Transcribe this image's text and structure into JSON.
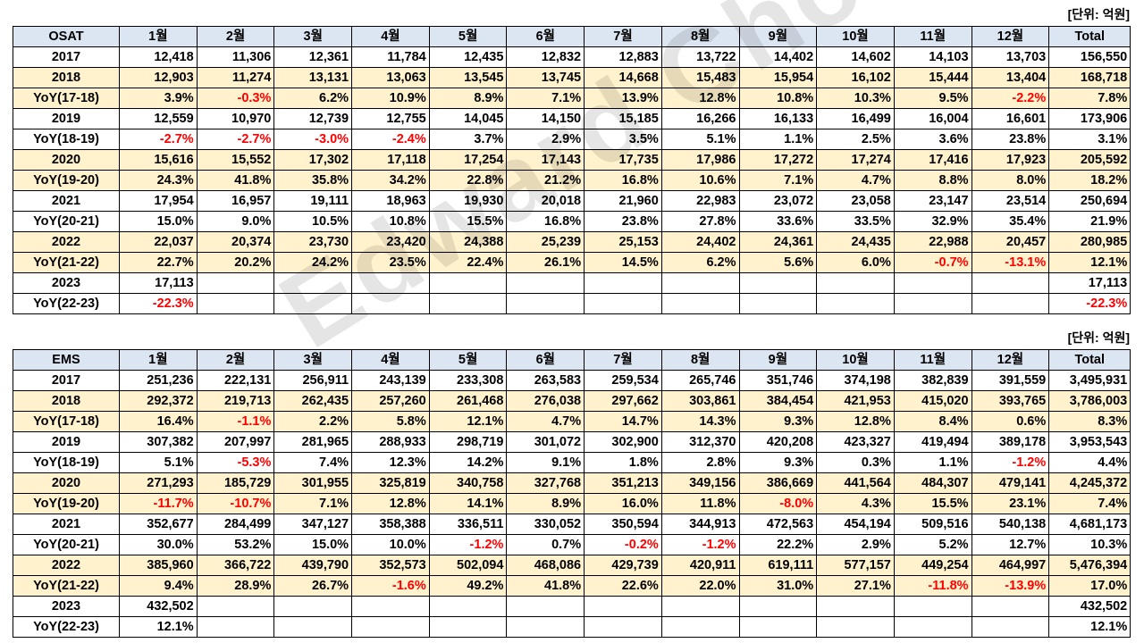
{
  "unit_label": "[단위: 억원]",
  "watermark": "Edward Choi",
  "months": [
    "1월",
    "2월",
    "3월",
    "4월",
    "5월",
    "6월",
    "7월",
    "8월",
    "9월",
    "10월",
    "11월",
    "12월"
  ],
  "total_label": "Total",
  "osat": {
    "title": "OSAT",
    "rows": [
      {
        "label": "2017",
        "style": "white",
        "cells": [
          "12,418",
          "11,306",
          "12,361",
          "11,784",
          "12,435",
          "12,832",
          "12,883",
          "13,722",
          "14,402",
          "14,602",
          "14,103",
          "13,703",
          "156,550"
        ]
      },
      {
        "label": "2018",
        "style": "yellow",
        "cells": [
          "12,903",
          "11,274",
          "13,131",
          "13,063",
          "13,545",
          "13,745",
          "14,668",
          "15,483",
          "15,954",
          "16,102",
          "15,444",
          "13,404",
          "168,718"
        ]
      },
      {
        "label": "YoY(17-18)",
        "style": "yellow",
        "cells": [
          "3.9%",
          "-0.3%",
          "6.2%",
          "10.9%",
          "8.9%",
          "7.1%",
          "13.9%",
          "12.8%",
          "10.8%",
          "10.3%",
          "9.5%",
          "-2.2%",
          "7.8%"
        ]
      },
      {
        "label": "2019",
        "style": "white",
        "cells": [
          "12,559",
          "10,970",
          "12,739",
          "12,755",
          "14,045",
          "14,150",
          "15,185",
          "16,266",
          "16,133",
          "16,499",
          "16,004",
          "16,601",
          "173,906"
        ]
      },
      {
        "label": "YoY(18-19)",
        "style": "white",
        "cells": [
          "-2.7%",
          "-2.7%",
          "-3.0%",
          "-2.4%",
          "3.7%",
          "2.9%",
          "3.5%",
          "5.1%",
          "1.1%",
          "2.5%",
          "3.6%",
          "23.8%",
          "3.1%"
        ]
      },
      {
        "label": "2020",
        "style": "yellow",
        "cells": [
          "15,616",
          "15,552",
          "17,302",
          "17,118",
          "17,254",
          "17,143",
          "17,735",
          "17,986",
          "17,272",
          "17,274",
          "17,416",
          "17,923",
          "205,592"
        ]
      },
      {
        "label": "YoY(19-20)",
        "style": "yellow",
        "cells": [
          "24.3%",
          "41.8%",
          "35.8%",
          "34.2%",
          "22.8%",
          "21.2%",
          "16.8%",
          "10.6%",
          "7.1%",
          "4.7%",
          "8.8%",
          "8.0%",
          "18.2%"
        ]
      },
      {
        "label": "2021",
        "style": "white",
        "cells": [
          "17,954",
          "16,957",
          "19,111",
          "18,963",
          "19,930",
          "20,018",
          "21,960",
          "22,983",
          "23,072",
          "23,058",
          "23,147",
          "23,514",
          "250,694"
        ]
      },
      {
        "label": "YoY(20-21)",
        "style": "white",
        "cells": [
          "15.0%",
          "9.0%",
          "10.5%",
          "10.8%",
          "15.5%",
          "16.8%",
          "23.8%",
          "27.8%",
          "33.6%",
          "33.5%",
          "32.9%",
          "35.4%",
          "21.9%"
        ]
      },
      {
        "label": "2022",
        "style": "yellow",
        "cells": [
          "22,037",
          "20,374",
          "23,730",
          "23,420",
          "24,388",
          "25,239",
          "25,153",
          "24,402",
          "24,361",
          "24,435",
          "22,988",
          "20,457",
          "280,985"
        ]
      },
      {
        "label": "YoY(21-22)",
        "style": "yellow",
        "cells": [
          "22.7%",
          "20.2%",
          "24.2%",
          "23.5%",
          "22.4%",
          "26.1%",
          "14.5%",
          "6.2%",
          "5.6%",
          "6.0%",
          "-0.7%",
          "-13.1%",
          "12.1%"
        ]
      },
      {
        "label": "2023",
        "style": "white",
        "cells": [
          "17,113",
          "",
          "",
          "",
          "",
          "",
          "",
          "",
          "",
          "",
          "",
          "",
          "17,113"
        ]
      },
      {
        "label": "YoY(22-23)",
        "style": "white",
        "cells": [
          "-22.3%",
          "",
          "",
          "",
          "",
          "",
          "",
          "",
          "",
          "",
          "",
          "",
          "-22.3%"
        ]
      }
    ]
  },
  "ems": {
    "title": "EMS",
    "rows": [
      {
        "label": "2017",
        "style": "white",
        "cells": [
          "251,236",
          "222,131",
          "256,911",
          "243,139",
          "233,308",
          "263,583",
          "259,534",
          "265,746",
          "351,746",
          "374,198",
          "382,839",
          "391,559",
          "3,495,931"
        ]
      },
      {
        "label": "2018",
        "style": "yellow",
        "cells": [
          "292,372",
          "219,713",
          "262,435",
          "257,260",
          "261,468",
          "276,038",
          "297,662",
          "303,861",
          "384,454",
          "421,953",
          "415,020",
          "393,765",
          "3,786,003"
        ]
      },
      {
        "label": "YoY(17-18)",
        "style": "yellow",
        "cells": [
          "16.4%",
          "-1.1%",
          "2.2%",
          "5.8%",
          "12.1%",
          "4.7%",
          "14.7%",
          "14.3%",
          "9.3%",
          "12.8%",
          "8.4%",
          "0.6%",
          "8.3%"
        ]
      },
      {
        "label": "2019",
        "style": "white",
        "cells": [
          "307,382",
          "207,997",
          "281,965",
          "288,933",
          "298,719",
          "301,072",
          "302,900",
          "312,370",
          "420,208",
          "423,327",
          "419,494",
          "389,178",
          "3,953,543"
        ]
      },
      {
        "label": "YoY(18-19)",
        "style": "white",
        "cells": [
          "5.1%",
          "-5.3%",
          "7.4%",
          "12.3%",
          "14.2%",
          "9.1%",
          "1.8%",
          "2.8%",
          "9.3%",
          "0.3%",
          "1.1%",
          "-1.2%",
          "4.4%"
        ]
      },
      {
        "label": "2020",
        "style": "yellow",
        "cells": [
          "271,293",
          "185,729",
          "301,955",
          "325,819",
          "340,758",
          "327,768",
          "351,213",
          "349,156",
          "386,669",
          "441,564",
          "484,307",
          "479,141",
          "4,245,372"
        ]
      },
      {
        "label": "YoY(19-20)",
        "style": "yellow",
        "cells": [
          "-11.7%",
          "-10.7%",
          "7.1%",
          "12.8%",
          "14.1%",
          "8.9%",
          "16.0%",
          "11.8%",
          "-8.0%",
          "4.3%",
          "15.5%",
          "23.1%",
          "7.4%"
        ]
      },
      {
        "label": "2021",
        "style": "white",
        "cells": [
          "352,677",
          "284,499",
          "347,127",
          "358,388",
          "336,511",
          "330,052",
          "350,594",
          "344,913",
          "472,563",
          "454,194",
          "509,516",
          "540,138",
          "4,681,173"
        ]
      },
      {
        "label": "YoY(20-21)",
        "style": "white",
        "cells": [
          "30.0%",
          "53.2%",
          "15.0%",
          "10.0%",
          "-1.2%",
          "0.7%",
          "-0.2%",
          "-1.2%",
          "22.2%",
          "2.9%",
          "5.2%",
          "12.7%",
          "10.3%"
        ]
      },
      {
        "label": "2022",
        "style": "yellow",
        "cells": [
          "385,960",
          "366,722",
          "439,790",
          "352,573",
          "502,094",
          "468,086",
          "429,739",
          "420,911",
          "619,111",
          "577,157",
          "449,254",
          "464,997",
          "5,476,394"
        ]
      },
      {
        "label": "YoY(21-22)",
        "style": "yellow",
        "cells": [
          "9.4%",
          "28.9%",
          "26.7%",
          "-1.6%",
          "49.2%",
          "41.8%",
          "22.6%",
          "22.0%",
          "31.0%",
          "27.1%",
          "-11.8%",
          "-13.9%",
          "17.0%"
        ]
      },
      {
        "label": "2023",
        "style": "white",
        "cells": [
          "432,502",
          "",
          "",
          "",
          "",
          "",
          "",
          "",
          "",
          "",
          "",
          "",
          "432,502"
        ]
      },
      {
        "label": "YoY(22-23)",
        "style": "white",
        "cells": [
          "12.1%",
          "",
          "",
          "",
          "",
          "",
          "",
          "",
          "",
          "",
          "",
          "",
          "12.1%"
        ]
      }
    ]
  }
}
